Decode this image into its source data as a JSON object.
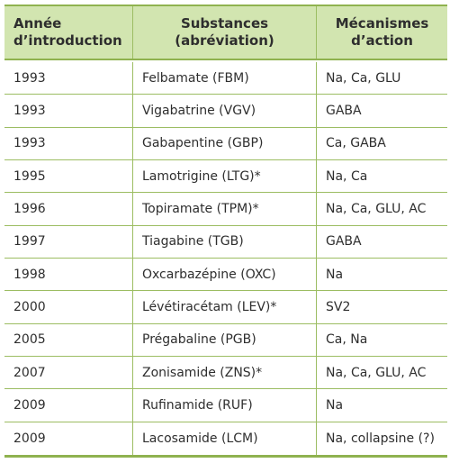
{
  "table": {
    "header": [
      [
        "Année",
        "d’introduction"
      ],
      [
        "Substances",
        "(abréviation)"
      ],
      [
        "Mécanismes",
        "d’action"
      ]
    ],
    "rows": [
      [
        "1993",
        "Felbamate (FBM)",
        "Na, Ca, GLU"
      ],
      [
        "1993",
        "Vigabatrine (VGV)",
        "GABA"
      ],
      [
        "1993",
        "Gabapentine (GBP)",
        "Ca, GABA"
      ],
      [
        "1995",
        "Lamotrigine (LTG)*",
        "Na, Ca"
      ],
      [
        "1996",
        "Topiramate (TPM)*",
        "Na, Ca, GLU, AC"
      ],
      [
        "1997",
        "Tiagabine (TGB)",
        "GABA"
      ],
      [
        "1998",
        "Oxcarbazépine (OXC)",
        "Na"
      ],
      [
        "2000",
        "Lévétiracétam (LEV)*",
        "SV2"
      ],
      [
        "2005",
        "Prégabaline (PGB)",
        "Ca, Na"
      ],
      [
        "2007",
        "Zonisamide (ZNS)*",
        "Na, Ca, GLU, AC"
      ],
      [
        "2009",
        "Rufinamide (RUF)",
        "Na"
      ],
      [
        "2009",
        "Lacosamide (LCM)",
        "Na, collapsine (?)"
      ]
    ]
  }
}
